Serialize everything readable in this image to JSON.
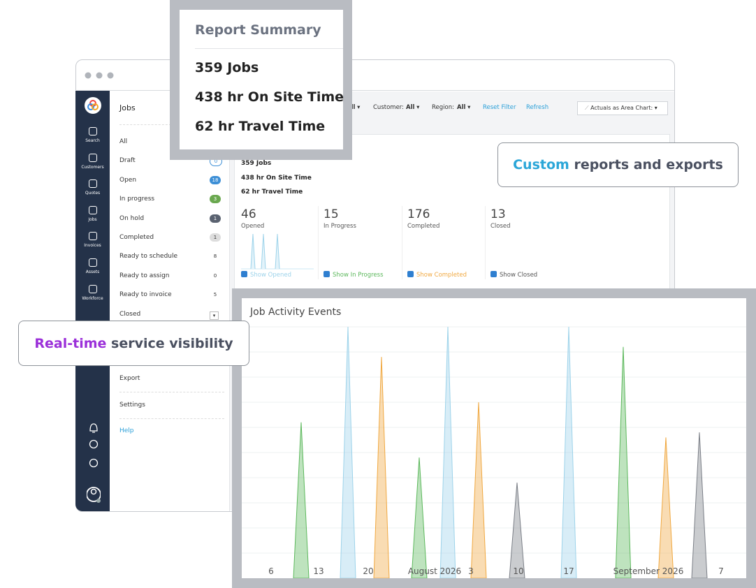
{
  "report_summary": {
    "title": "Report Summary",
    "lines": [
      "359 Jobs",
      "438 hr On Site Time",
      "62 hr Travel Time"
    ]
  },
  "callouts": [
    {
      "highlight": "Custom",
      "text": "reports and exports"
    },
    {
      "highlight": "Real-time",
      "text": "service visibility"
    }
  ],
  "sidebar": [
    "Search",
    "Customers",
    "Quotes",
    "Jobs",
    "Invoices",
    "Assets",
    "Workforce"
  ],
  "jobs_panel": {
    "title": "Jobs",
    "items": [
      {
        "label": "All"
      },
      {
        "label": "Draft",
        "count": "0"
      },
      {
        "label": "Open",
        "count": "18"
      },
      {
        "label": "In progress",
        "count": "3"
      },
      {
        "label": "On hold",
        "count": "1"
      },
      {
        "label": "Completed",
        "count": "1"
      },
      {
        "label": "Ready to schedule",
        "count": "8"
      },
      {
        "label": "Ready to assign",
        "count": "0"
      },
      {
        "label": "Ready to invoice",
        "count": "5"
      },
      {
        "label": "Closed"
      }
    ],
    "links": [
      "Export",
      "Settings",
      "Help"
    ]
  },
  "filters": {
    "status": "All",
    "customer_label": "Customer:",
    "customer": "All",
    "region_label": "Region:",
    "region": "All",
    "reset": "Reset Filter",
    "refresh": "Refresh",
    "view": "Actuals as Area Chart:"
  },
  "inner_summary": [
    "359 Jobs",
    "438 hr On Site Time",
    "62 hr Travel Time"
  ],
  "stats": [
    {
      "value": "46",
      "label": "Opened",
      "toggle": "Show Opened"
    },
    {
      "value": "15",
      "label": "In Progress",
      "toggle": "Show In Progress"
    },
    {
      "value": "176",
      "label": "Completed",
      "toggle": "Show Completed"
    },
    {
      "value": "13",
      "label": "Closed",
      "toggle": "Show Closed"
    }
  ],
  "chart_data": {
    "type": "area",
    "title": "Job Activity Events",
    "categories": [
      "6",
      "13",
      "20",
      "August 2026",
      "3",
      "10",
      "17",
      "September 2026",
      "7"
    ],
    "ylim": [
      0,
      100
    ],
    "spikes": [
      {
        "color": "#5cb85c",
        "values": 62
      },
      {
        "color": "#9dd3ea",
        "values": 100
      },
      {
        "color": "#f0a840",
        "values": 88
      },
      {
        "color": "#5cb85c",
        "values": 48
      },
      {
        "color": "#9dd3ea",
        "values": 100
      },
      {
        "color": "#f0a840",
        "values": 70
      },
      {
        "color": "#7b7f87",
        "values": 38
      },
      {
        "color": "#9dd3ea",
        "values": 100
      },
      {
        "color": "#5cb85c",
        "values": 92
      },
      {
        "color": "#f0a840",
        "values": 56
      },
      {
        "color": "#7b7f87",
        "values": 58
      }
    ]
  }
}
